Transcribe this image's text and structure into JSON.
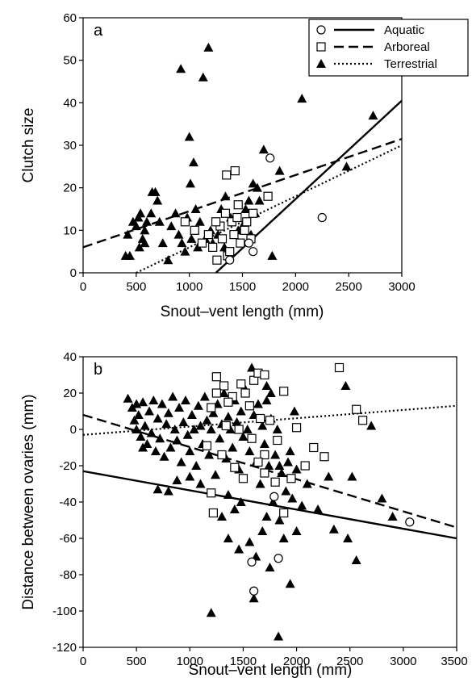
{
  "chart_data": [
    {
      "type": "scatter",
      "panel_label": "a",
      "xlabel": "Snout–vent length (mm)",
      "ylabel": "Clutch size",
      "xlim": [
        0,
        3000
      ],
      "ylim": [
        0,
        60
      ],
      "xticks": [
        0,
        500,
        1000,
        1500,
        2000,
        2500,
        3000
      ],
      "yticks": [
        0,
        10,
        20,
        30,
        40,
        50,
        60
      ],
      "grid": false,
      "legend": {
        "placement": "top-right",
        "entries": [
          {
            "label": "Aquatic",
            "marker": "circle",
            "line": "solid"
          },
          {
            "label": "Arboreal",
            "marker": "square",
            "line": "dashed"
          },
          {
            "label": "Terrestrial",
            "marker": "triangle",
            "line": "dotted"
          }
        ]
      },
      "series": [
        {
          "name": "Aquatic",
          "marker": "circle",
          "points": [
            [
              1760,
              27
            ],
            [
              2250,
              13
            ],
            [
              1600,
              5
            ],
            [
              1380,
              3
            ],
            [
              1560,
              7
            ]
          ]
        },
        {
          "name": "Arboreal",
          "marker": "square",
          "points": [
            [
              1350,
              23
            ],
            [
              1430,
              24
            ],
            [
              1740,
              18
            ],
            [
              960,
              12
            ],
            [
              1050,
              10
            ],
            [
              1120,
              7
            ],
            [
              1180,
              9
            ],
            [
              1220,
              6
            ],
            [
              1260,
              3
            ],
            [
              1290,
              11
            ],
            [
              1310,
              8
            ],
            [
              1340,
              14
            ],
            [
              1360,
              4
            ],
            [
              1400,
              12
            ],
            [
              1420,
              9
            ],
            [
              1450,
              13
            ],
            [
              1480,
              7
            ],
            [
              1520,
              10
            ],
            [
              1540,
              12
            ],
            [
              1580,
              8
            ],
            [
              1600,
              14
            ],
            [
              1380,
              5
            ],
            [
              1250,
              12
            ],
            [
              1460,
              16
            ]
          ]
        },
        {
          "name": "Terrestrial",
          "marker": "triangle",
          "points": [
            [
              1180,
              53
            ],
            [
              920,
              48
            ],
            [
              1130,
              46
            ],
            [
              1000,
              32
            ],
            [
              2060,
              41
            ],
            [
              2730,
              37
            ],
            [
              1700,
              29
            ],
            [
              2480,
              25
            ],
            [
              1850,
              24
            ],
            [
              1600,
              21
            ],
            [
              1640,
              20
            ],
            [
              1560,
              17
            ],
            [
              1660,
              17
            ],
            [
              1530,
              15
            ],
            [
              1620,
              14
            ],
            [
              1500,
              11
            ],
            [
              1580,
              9
            ],
            [
              1300,
              15
            ],
            [
              1250,
              12
            ],
            [
              1200,
              10
            ],
            [
              1150,
              8
            ],
            [
              1100,
              12
            ],
            [
              1050,
              10
            ],
            [
              1020,
              8
            ],
            [
              1080,
              6
            ],
            [
              980,
              13
            ],
            [
              1010,
              21
            ],
            [
              1040,
              26
            ],
            [
              1060,
              15
            ],
            [
              870,
              14
            ],
            [
              900,
              9
            ],
            [
              930,
              7
            ],
            [
              960,
              5
            ],
            [
              830,
              11
            ],
            [
              800,
              3
            ],
            [
              750,
              7
            ],
            [
              720,
              12
            ],
            [
              680,
              19
            ],
            [
              700,
              17
            ],
            [
              640,
              14
            ],
            [
              650,
              19
            ],
            [
              600,
              12
            ],
            [
              580,
              10
            ],
            [
              560,
              8
            ],
            [
              530,
              6
            ],
            [
              520,
              13
            ],
            [
              500,
              11
            ],
            [
              470,
              12
            ],
            [
              440,
              4
            ],
            [
              400,
              4
            ],
            [
              420,
              9
            ],
            [
              540,
              14
            ],
            [
              580,
              7
            ],
            [
              1780,
              4
            ],
            [
              1220,
              7
            ],
            [
              1270,
              9
            ],
            [
              1340,
              18
            ],
            [
              1390,
              13
            ],
            [
              1460,
              10
            ],
            [
              1330,
              6
            ]
          ]
        }
      ],
      "fit_lines": [
        {
          "series": "Aquatic",
          "style": "solid",
          "x": [
            1250,
            3000
          ],
          "y": [
            0,
            40.5
          ]
        },
        {
          "series": "Arboreal",
          "style": "dashed",
          "x": [
            0,
            3000
          ],
          "y": [
            6,
            31.5
          ]
        },
        {
          "series": "Terrestrial",
          "style": "dotted",
          "x": [
            500,
            3000
          ],
          "y": [
            0,
            30
          ]
        }
      ]
    },
    {
      "type": "scatter",
      "panel_label": "b",
      "xlabel": "Snout–vent length (mm)",
      "ylabel": "Distance between ovaries (mm)",
      "xlim": [
        0,
        3500
      ],
      "ylim": [
        -120,
        40
      ],
      "xticks": [
        0,
        500,
        1000,
        1500,
        2000,
        2500,
        3000,
        3500
      ],
      "yticks": [
        -120,
        -100,
        -80,
        -60,
        -40,
        -20,
        0,
        20,
        40
      ],
      "grid": false,
      "series": [
        {
          "name": "Aquatic",
          "marker": "circle",
          "points": [
            [
              3060,
              -51
            ],
            [
              1790,
              -37
            ],
            [
              1580,
              -73
            ],
            [
              1830,
              -71
            ],
            [
              1600,
              -89
            ]
          ]
        },
        {
          "name": "Arboreal",
          "marker": "square",
          "points": [
            [
              1250,
              29
            ],
            [
              1320,
              24
            ],
            [
              1400,
              18
            ],
            [
              1480,
              25
            ],
            [
              1600,
              27
            ],
            [
              1640,
              31
            ],
            [
              1700,
              30
            ],
            [
              2400,
              34
            ],
            [
              2560,
              11
            ],
            [
              2620,
              5
            ],
            [
              1880,
              21
            ],
            [
              1520,
              20
            ],
            [
              1560,
              13
            ],
            [
              1360,
              15
            ],
            [
              1200,
              12
            ],
            [
              1160,
              -9
            ],
            [
              1300,
              -14
            ],
            [
              1420,
              -21
            ],
            [
              1500,
              -27
            ],
            [
              1700,
              -24
            ],
            [
              1800,
              -29
            ],
            [
              2000,
              1
            ],
            [
              2160,
              -10
            ],
            [
              2260,
              -15
            ],
            [
              2080,
              -20
            ],
            [
              1950,
              -27
            ],
            [
              1200,
              -35
            ],
            [
              1880,
              -46
            ],
            [
              1220,
              -46
            ],
            [
              1660,
              6
            ],
            [
              1750,
              5
            ],
            [
              1580,
              -5
            ],
            [
              1460,
              0
            ],
            [
              1340,
              2
            ],
            [
              1700,
              -14
            ],
            [
              1820,
              -6
            ],
            [
              1640,
              -18
            ],
            [
              1250,
              20
            ]
          ]
        },
        {
          "name": "Terrestrial",
          "marker": "triangle",
          "points": [
            [
              420,
              17
            ],
            [
              460,
              12
            ],
            [
              480,
              5
            ],
            [
              500,
              0
            ],
            [
              520,
              8
            ],
            [
              540,
              -4
            ],
            [
              560,
              15
            ],
            [
              580,
              2
            ],
            [
              600,
              -8
            ],
            [
              620,
              10
            ],
            [
              640,
              -2
            ],
            [
              660,
              16
            ],
            [
              680,
              -12
            ],
            [
              700,
              6
            ],
            [
              720,
              -5
            ],
            [
              740,
              14
            ],
            [
              760,
              -15
            ],
            [
              780,
              3
            ],
            [
              800,
              9
            ],
            [
              820,
              -10
            ],
            [
              840,
              18
            ],
            [
              860,
              0
            ],
            [
              880,
              -6
            ],
            [
              900,
              12
            ],
            [
              920,
              -18
            ],
            [
              940,
              4
            ],
            [
              960,
              16
            ],
            [
              980,
              -3
            ],
            [
              1000,
              -12
            ],
            [
              1020,
              8
            ],
            [
              1040,
              0
            ],
            [
              1060,
              -20
            ],
            [
              1080,
              13
            ],
            [
              1100,
              2
            ],
            [
              1120,
              -8
            ],
            [
              1140,
              18
            ],
            [
              1160,
              5
            ],
            [
              1180,
              -14
            ],
            [
              1200,
              0
            ],
            [
              1220,
              9
            ],
            [
              1240,
              -25
            ],
            [
              1260,
              14
            ],
            [
              1280,
              -5
            ],
            [
              1300,
              3
            ],
            [
              1320,
              20
            ],
            [
              1340,
              -16
            ],
            [
              1360,
              7
            ],
            [
              1380,
              0
            ],
            [
              1400,
              -10
            ],
            [
              1420,
              16
            ],
            [
              1440,
              4
            ],
            [
              1460,
              -22
            ],
            [
              1480,
              10
            ],
            [
              1500,
              -4
            ],
            [
              1520,
              22
            ],
            [
              1540,
              0
            ],
            [
              1560,
              -12
            ],
            [
              1580,
              34
            ],
            [
              1600,
              8
            ],
            [
              1620,
              -18
            ],
            [
              1640,
              14
            ],
            [
              1660,
              -30
            ],
            [
              1680,
              2
            ],
            [
              1700,
              -8
            ],
            [
              1720,
              16
            ],
            [
              1740,
              -20
            ],
            [
              1760,
              6
            ],
            [
              1780,
              -40
            ],
            [
              1800,
              -14
            ],
            [
              1820,
              0
            ],
            [
              1840,
              -50
            ],
            [
              1860,
              -24
            ],
            [
              1880,
              -60
            ],
            [
              1900,
              -34
            ],
            [
              1920,
              -18
            ],
            [
              1960,
              -38
            ],
            [
              2000,
              -56
            ],
            [
              2050,
              -42
            ],
            [
              2100,
              -30
            ],
            [
              2200,
              -44
            ],
            [
              2300,
              -26
            ],
            [
              2350,
              -55
            ],
            [
              2460,
              24
            ],
            [
              2480,
              -60
            ],
            [
              2520,
              -26
            ],
            [
              2560,
              -72
            ],
            [
              2700,
              2
            ],
            [
              2800,
              -38
            ],
            [
              2900,
              -48
            ],
            [
              1200,
              -101
            ],
            [
              1600,
              -93
            ],
            [
              1830,
              -114
            ],
            [
              1940,
              -85
            ],
            [
              1560,
              -62
            ],
            [
              1620,
              -70
            ],
            [
              1720,
              -48
            ],
            [
              1750,
              -76
            ],
            [
              1480,
              -40
            ],
            [
              1420,
              -44
            ],
            [
              1360,
              -36
            ],
            [
              1300,
              -48
            ],
            [
              1680,
              -56
            ],
            [
              1460,
              -66
            ],
            [
              1360,
              -60
            ],
            [
              800,
              -34
            ],
            [
              700,
              -33
            ],
            [
              1100,
              -30
            ],
            [
              1000,
              -26
            ],
            [
              880,
              -28
            ],
            [
              1840,
              -20
            ],
            [
              1940,
              -12
            ],
            [
              500,
              14
            ],
            [
              560,
              -10
            ],
            [
              2000,
              -22
            ],
            [
              1980,
              10
            ],
            [
              1720,
              24
            ],
            [
              1760,
              20
            ]
          ]
        }
      ],
      "fit_lines": [
        {
          "series": "Aquatic",
          "style": "solid",
          "x": [
            0,
            3500
          ],
          "y": [
            -23,
            -60
          ]
        },
        {
          "series": "Arboreal",
          "style": "dashed",
          "x": [
            0,
            3500
          ],
          "y": [
            8,
            -54
          ]
        },
        {
          "series": "Terrestrial",
          "style": "dotted",
          "x": [
            0,
            3500
          ],
          "y": [
            -3,
            13
          ]
        }
      ]
    }
  ]
}
